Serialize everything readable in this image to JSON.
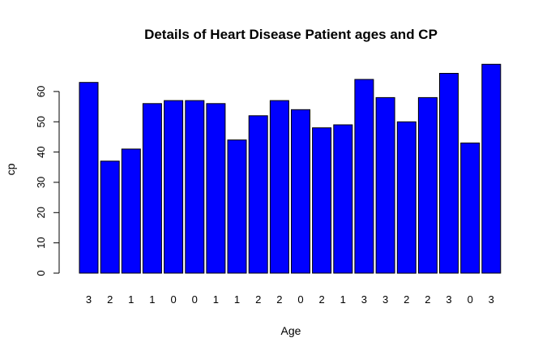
{
  "chart_data": {
    "type": "bar",
    "title": "Details of Heart Disease Patient ages and CP",
    "xlabel": "Age",
    "ylabel": "cp",
    "categories": [
      "3",
      "2",
      "1",
      "1",
      "0",
      "0",
      "1",
      "1",
      "2",
      "2",
      "0",
      "2",
      "1",
      "3",
      "3",
      "2",
      "2",
      "3",
      "0",
      "3"
    ],
    "values": [
      63,
      37,
      41,
      56,
      57,
      57,
      56,
      44,
      52,
      57,
      54,
      48,
      49,
      64,
      58,
      50,
      58,
      66,
      43,
      69
    ],
    "ylim": [
      0,
      70
    ],
    "yticks": [
      0,
      10,
      20,
      30,
      40,
      50,
      60
    ],
    "bar_color": "#0000ff",
    "grid": false
  }
}
